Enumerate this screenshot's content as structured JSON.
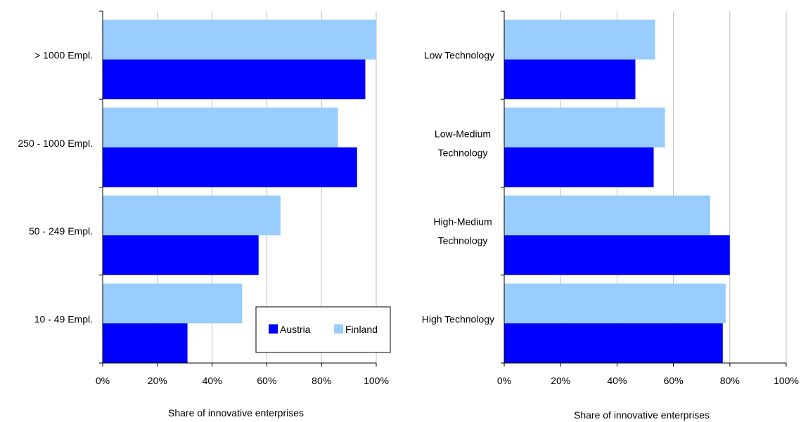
{
  "chart_data": [
    {
      "type": "bar",
      "orientation": "horizontal",
      "categories": [
        "> 1000 Empl.",
        "250 - 1000 Empl.",
        "50 - 249 Empl.",
        "10 - 49 Empl."
      ],
      "series": [
        {
          "name": "Finland",
          "color": "#99CCFF",
          "values": [
            100,
            86,
            65,
            51
          ]
        },
        {
          "name": "Austria",
          "color": "#0000FF",
          "values": [
            96,
            93,
            57,
            31
          ]
        }
      ],
      "xlabel": "Share of innovative enterprises",
      "xlim": [
        0,
        100
      ],
      "ticks": [
        "0%",
        "20%",
        "40%",
        "60%",
        "80%",
        "100%"
      ],
      "grid": true,
      "legend": {
        "placement": "bottom-right",
        "entries": [
          "Austria",
          "Finland"
        ]
      }
    },
    {
      "type": "bar",
      "orientation": "horizontal",
      "categories": [
        "Low Technology",
        "Low-Medium Technology",
        "High-Medium Technology",
        "High Technology"
      ],
      "category_lines": [
        [
          "Low Technology"
        ],
        [
          "Low-Medium",
          "Technology"
        ],
        [
          "High-Medium",
          "Technology"
        ],
        [
          "High Technology"
        ]
      ],
      "series": [
        {
          "name": "Finland",
          "color": "#99CCFF",
          "values": [
            53.5,
            57,
            73,
            78.5
          ]
        },
        {
          "name": "Austria",
          "color": "#0000FF",
          "values": [
            46.5,
            53,
            80,
            77.5
          ]
        }
      ],
      "xlabel": "Share of innovative enterprises",
      "xlim": [
        0,
        100
      ],
      "ticks": [
        "0%",
        "20%",
        "40%",
        "60%",
        "80%",
        "100%"
      ],
      "grid": true
    }
  ]
}
